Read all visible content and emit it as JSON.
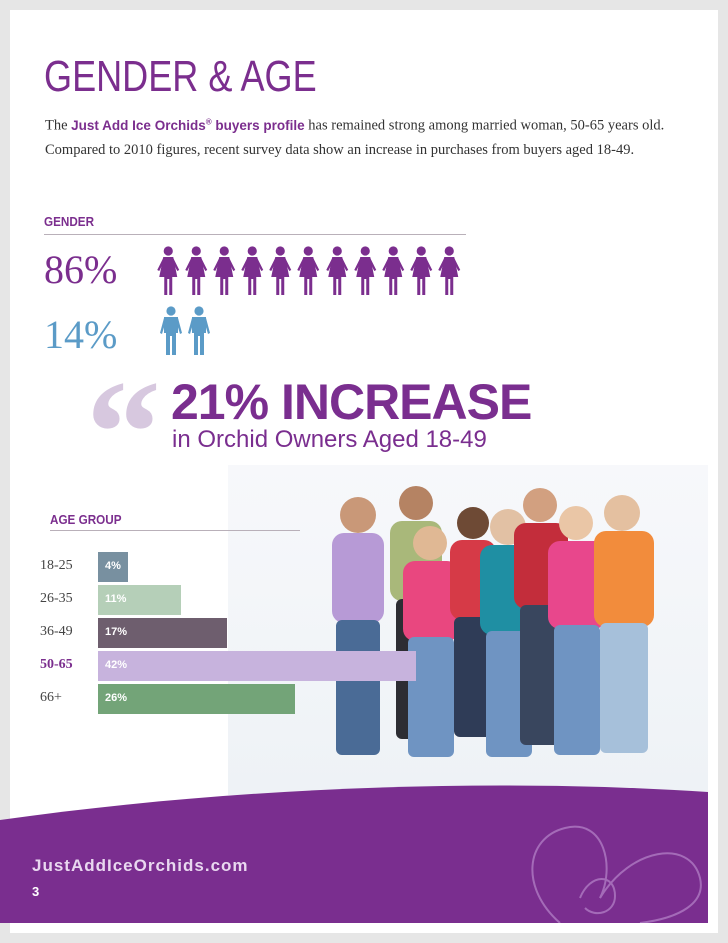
{
  "title": "GENDER & AGE",
  "intro": {
    "pre": "The ",
    "brand": "Just Add Ice Orchids",
    "reg": "®",
    "brand_suffix": " buyers profile",
    "text": " has remained strong among married woman, 50-65 years old. Compared to 2010 figures, recent survey data show an increase in purchases from buyers aged 18-49."
  },
  "gender": {
    "label": "GENDER",
    "female_pct": "86%",
    "male_pct": "14%",
    "female_icons": 11,
    "male_icons": 2,
    "female_color": "#7b2e8e",
    "male_color": "#5b9bc7"
  },
  "callout": {
    "headline": "21% INCREASE",
    "subhead": "in Orchid Owners Aged 18-49"
  },
  "age": {
    "label": "AGE GROUP",
    "groups": [
      {
        "range": "18-25",
        "value": 4,
        "text": "4%",
        "color": "#7890a0",
        "highlight": false
      },
      {
        "range": "26-35",
        "value": 11,
        "text": "11%",
        "color": "#b5cfb8",
        "highlight": false
      },
      {
        "range": "36-49",
        "value": 17,
        "text": "17%",
        "color": "#6e5e6e",
        "highlight": false
      },
      {
        "range": "50-65",
        "value": 42,
        "text": "42%",
        "color": "#c7b3dd",
        "highlight": true
      },
      {
        "range": "66+",
        "value": 26,
        "text": "26%",
        "color": "#73a478",
        "highlight": false
      }
    ]
  },
  "footer": {
    "url": "JustAddIceOrchids.com",
    "page": "3",
    "color": "#7a2e8f"
  }
}
